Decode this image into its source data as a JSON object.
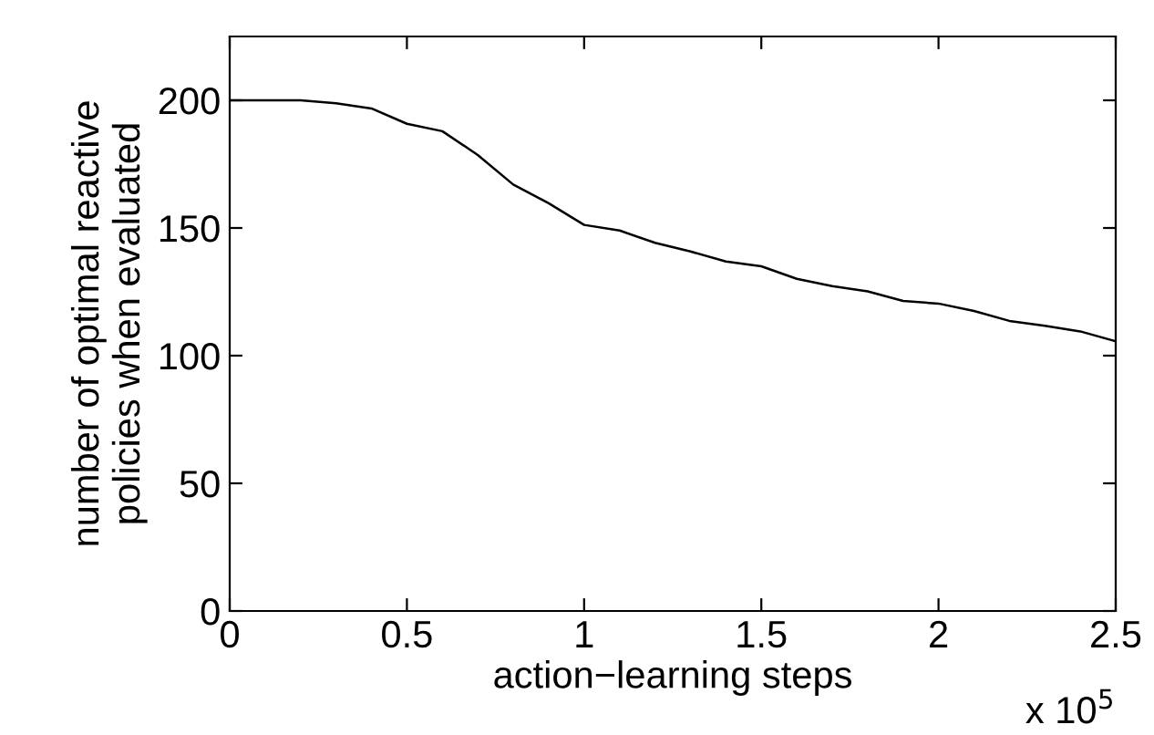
{
  "chart_data": {
    "type": "line",
    "xlabel": "action−learning steps",
    "ylabel": "number of optimal reactive\npolicies when evaluated",
    "series": [
      {
        "color": "#000000",
        "x": [
          0,
          0.1,
          0.2,
          0.3,
          0.4,
          0.5,
          0.6,
          0.7,
          0.8,
          0.9,
          1.0,
          1.1,
          1.2,
          1.3,
          1.4,
          1.5,
          1.6,
          1.7,
          1.8,
          1.9,
          2.0,
          2.1,
          2.2,
          2.3,
          2.4,
          2.5
        ],
        "values": [
          200,
          200,
          200,
          198.8,
          196.8,
          190.8,
          187.9,
          178.6,
          167,
          159.7,
          151.2,
          149,
          144.2,
          140.8,
          136.9,
          135,
          130.1,
          127.2,
          125.2,
          121.4,
          120.4,
          117.5,
          113.6,
          111.7,
          109.5,
          105.6
        ]
      }
    ],
    "xlim": [
      0,
      2.5
    ],
    "xticks": [
      0,
      0.5,
      1,
      1.5,
      2,
      2.5
    ],
    "ylim": [
      0,
      225
    ],
    "yticks": [
      0,
      50,
      100,
      150,
      200
    ],
    "annotations": [
      "x 10$^{5}$"
    ],
    "grid": false,
    "legend": false,
    "marker": "none",
    "line_style": "solid"
  }
}
